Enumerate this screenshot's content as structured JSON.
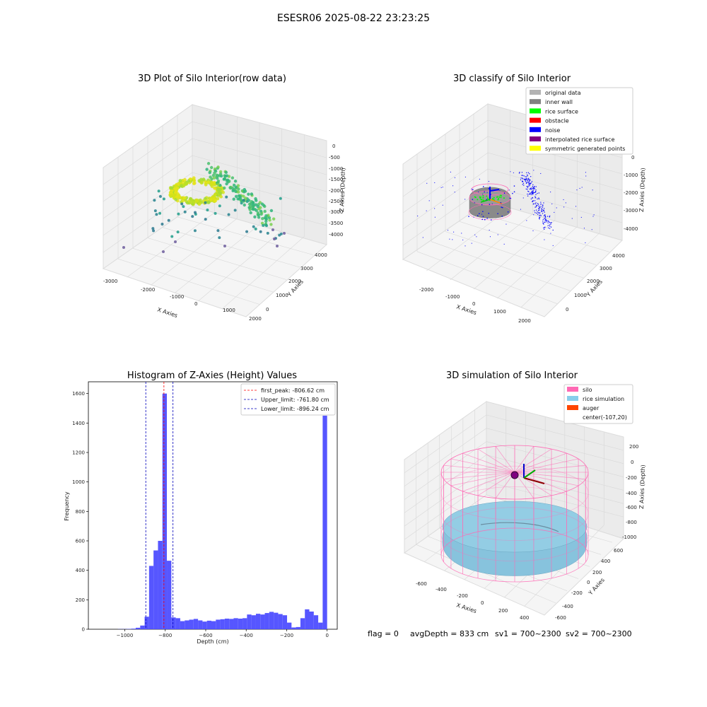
{
  "suptitle": "ESESR06 2025-08-22 23:23:25",
  "panel1": {
    "title": "3D Plot of Silo Interior(row data)",
    "xlabel": "X Axies",
    "ylabel": "Y Axies",
    "zlabel": "Z Axies (Depth)",
    "xticks": [
      "-3000",
      "-2000",
      "-1000",
      "0",
      "1000",
      "2000"
    ],
    "yticks": [
      "0",
      "1000",
      "2000",
      "3000",
      "4000"
    ],
    "zticks": [
      "0",
      "-500",
      "-1000",
      "-1500",
      "-2000",
      "-2500",
      "-3000",
      "-3500",
      "-4000"
    ]
  },
  "panel2": {
    "title": "3D classify of Silo Interior",
    "xlabel": "X Axies",
    "ylabel": "Y Axies",
    "zlabel": "Z Axies (Depth)",
    "xticks": [
      "-2000",
      "-1000",
      "0",
      "1000",
      "2000"
    ],
    "yticks": [
      "0",
      "1000",
      "2000",
      "3000",
      "4000"
    ],
    "zticks": [
      "0",
      "-1000",
      "-2000",
      "-3000",
      "-4000"
    ],
    "legend": [
      {
        "label": "original data",
        "color": "#b3b3b3"
      },
      {
        "label": "inner wall",
        "color": "#808080"
      },
      {
        "label": "rice surface",
        "color": "#00ff00"
      },
      {
        "label": "obstacle",
        "color": "#ff0000"
      },
      {
        "label": "noise",
        "color": "#0000ff"
      },
      {
        "label": "interpolated rice surface",
        "color": "#800080"
      },
      {
        "label": "symmetric generated points",
        "color": "#ffff00"
      }
    ]
  },
  "panel4": {
    "title": "3D simulation of Silo Interior",
    "xlabel": "X Axies",
    "ylabel": "Y Axies",
    "zlabel": "Z Axies (Depth)",
    "xticks": [
      "-600",
      "-400",
      "-200",
      "0",
      "200",
      "400"
    ],
    "yticks": [
      "-600",
      "-400",
      "-200",
      "0",
      "200",
      "400",
      "600"
    ],
    "zticks": [
      "200",
      "0",
      "-200",
      "-400",
      "-600",
      "-800",
      "-1000"
    ],
    "legend": [
      {
        "label": "silo",
        "color": "#ff69b4"
      },
      {
        "label": "rice simulation",
        "color": "#87ceeb"
      },
      {
        "label": "auger",
        "color": "#ff4500"
      },
      {
        "label": "center(-107,20)",
        "color": ""
      }
    ]
  },
  "status": {
    "flag": "flag = 0",
    "avg": "avgDepth = 833 cm",
    "sv1": "sv1 = 700~2300",
    "sv2": "sv2 = 700~2300"
  },
  "colors": {
    "bar": "#4d4dff",
    "peak": "#ff0000",
    "limit": "#0000bb"
  },
  "chart_data": {
    "type": "bar",
    "title": "Histogram of Z-Axies (Height) Values",
    "xlabel": "Depth (cm)",
    "ylabel": "Frequency",
    "xlim": [
      -1180,
      50
    ],
    "ylim": [
      0,
      1680
    ],
    "xticks": [
      -1000,
      -800,
      -600,
      -400,
      -200,
      0
    ],
    "yticks": [
      0,
      200,
      400,
      600,
      800,
      1000,
      1200,
      1400,
      1600
    ],
    "bin_width": 22,
    "bins": [
      [
        -1034,
        1
      ],
      [
        -1012,
        1
      ],
      [
        -990,
        2
      ],
      [
        -968,
        4
      ],
      [
        -946,
        10
      ],
      [
        -924,
        25
      ],
      [
        -902,
        85
      ],
      [
        -880,
        430
      ],
      [
        -858,
        535
      ],
      [
        -836,
        600
      ],
      [
        -814,
        1600
      ],
      [
        -792,
        465
      ],
      [
        -770,
        80
      ],
      [
        -748,
        75
      ],
      [
        -726,
        55
      ],
      [
        -704,
        60
      ],
      [
        -682,
        65
      ],
      [
        -660,
        70
      ],
      [
        -638,
        60
      ],
      [
        -616,
        52
      ],
      [
        -594,
        58
      ],
      [
        -572,
        55
      ],
      [
        -550,
        65
      ],
      [
        -528,
        68
      ],
      [
        -506,
        72
      ],
      [
        -484,
        70
      ],
      [
        -462,
        75
      ],
      [
        -440,
        72
      ],
      [
        -418,
        75
      ],
      [
        -396,
        100
      ],
      [
        -374,
        95
      ],
      [
        -352,
        105
      ],
      [
        -330,
        100
      ],
      [
        -308,
        110
      ],
      [
        -286,
        118
      ],
      [
        -264,
        112
      ],
      [
        -242,
        103
      ],
      [
        -220,
        95
      ],
      [
        -198,
        45
      ],
      [
        -176,
        12
      ],
      [
        -154,
        15
      ],
      [
        -132,
        75
      ],
      [
        -110,
        135
      ],
      [
        -88,
        120
      ],
      [
        -66,
        95
      ],
      [
        -44,
        45
      ],
      [
        -22,
        1450
      ]
    ],
    "vlines": [
      {
        "label": "first_peak: -806.62 cm",
        "value": -806.62,
        "color": "#ff0000"
      },
      {
        "label": "Upper_limit: -761.80 cm",
        "value": -761.8,
        "color": "#0000bb"
      },
      {
        "label": "Lower_limit: -896.24 cm",
        "value": -896.24,
        "color": "#0000bb"
      }
    ]
  }
}
